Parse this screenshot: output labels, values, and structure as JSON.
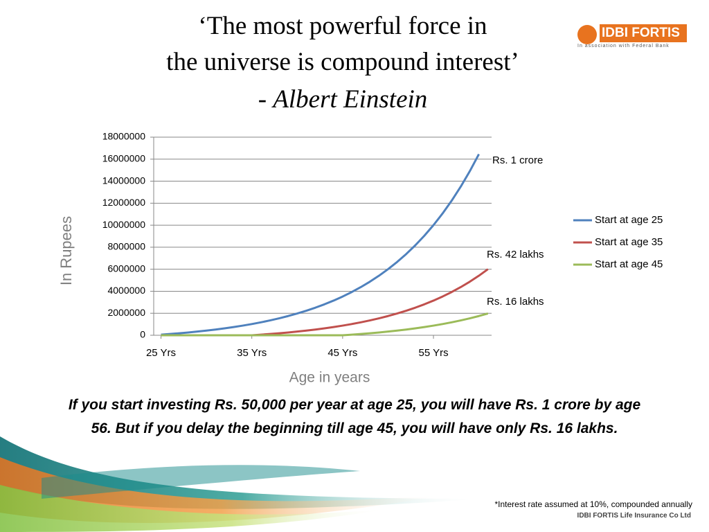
{
  "slide": {
    "title_lines": [
      "‘The most powerful force in",
      "the universe is compound interest’"
    ],
    "quote_dash": "-",
    "author": "Albert Einstein",
    "logo_name": "IDBI FORTIS",
    "logo_tagline": "In association with Federal Bank",
    "caption_lines": [
      "If you start investing Rs. 50,000 per year at age 25, you will have Rs. 1 crore by age",
      "56. But if you delay the beginning till age 45, you will have only Rs. 16 lakhs."
    ],
    "footnote": "*Interest rate assumed at 10%, compounded annually",
    "company": "IDBI FORTIS Life Insurance Co Ltd"
  },
  "chart_data": {
    "type": "line",
    "y_label": "In Rupees",
    "x_label": "Age in years",
    "x": [
      25,
      26,
      27,
      28,
      29,
      30,
      31,
      32,
      33,
      34,
      35,
      36,
      37,
      38,
      39,
      40,
      41,
      42,
      43,
      44,
      45,
      46,
      47,
      48,
      49,
      50,
      51,
      52,
      53,
      54,
      55,
      56,
      57,
      58,
      59,
      60,
      61
    ],
    "series": [
      {
        "name": "Start at age 25",
        "color": "#4f81bd",
        "values": [
          55000,
          116000,
          182000,
          255000,
          336000,
          424000,
          522000,
          629000,
          747000,
          877000,
          1019000,
          1176000,
          1349000,
          1539000,
          1747000,
          1977000,
          2230000,
          2508000,
          2814000,
          3150000,
          3520000,
          3927000,
          4375000,
          4867000,
          5409000,
          6005000,
          6660000,
          7382000,
          8175000,
          9047000,
          10007000,
          11063000,
          12224000,
          13501000,
          14906000,
          16452000,
          null
        ]
      },
      {
        "name": "Start at age 35",
        "color": "#c0504d",
        "values": [
          0,
          0,
          0,
          0,
          0,
          0,
          0,
          0,
          0,
          0,
          0,
          55000,
          116000,
          182000,
          255000,
          336000,
          424000,
          522000,
          629000,
          747000,
          877000,
          1019000,
          1176000,
          1349000,
          1539000,
          1747000,
          1977000,
          2230000,
          2508000,
          2814000,
          3150000,
          3520000,
          3927000,
          4375000,
          4867000,
          5409000,
          6005000
        ]
      },
      {
        "name": "Start at age 45",
        "color": "#9bbb59",
        "values": [
          0,
          0,
          0,
          0,
          0,
          0,
          0,
          0,
          0,
          0,
          0,
          0,
          0,
          0,
          0,
          0,
          0,
          0,
          0,
          0,
          0,
          55000,
          116000,
          182000,
          255000,
          336000,
          424000,
          522000,
          629000,
          747000,
          877000,
          1019000,
          1176000,
          1349000,
          1539000,
          1747000,
          1977000
        ]
      }
    ],
    "annotations": [
      "Rs. 1 crore",
      "Rs. 42 lakhs",
      "Rs. 16 lakhs"
    ],
    "xlim": [
      24.2,
      61.4
    ],
    "xticks": [
      {
        "value": 25,
        "label": "25 Yrs"
      },
      {
        "value": 35,
        "label": "35 Yrs"
      },
      {
        "value": 45,
        "label": "45 Yrs"
      },
      {
        "value": 55,
        "label": "55 Yrs"
      }
    ],
    "ylim": [
      0,
      18000000
    ],
    "yticks": [
      0,
      2000000,
      4000000,
      6000000,
      8000000,
      10000000,
      12000000,
      14000000,
      16000000,
      18000000
    ],
    "grid": true,
    "legend": "right"
  }
}
